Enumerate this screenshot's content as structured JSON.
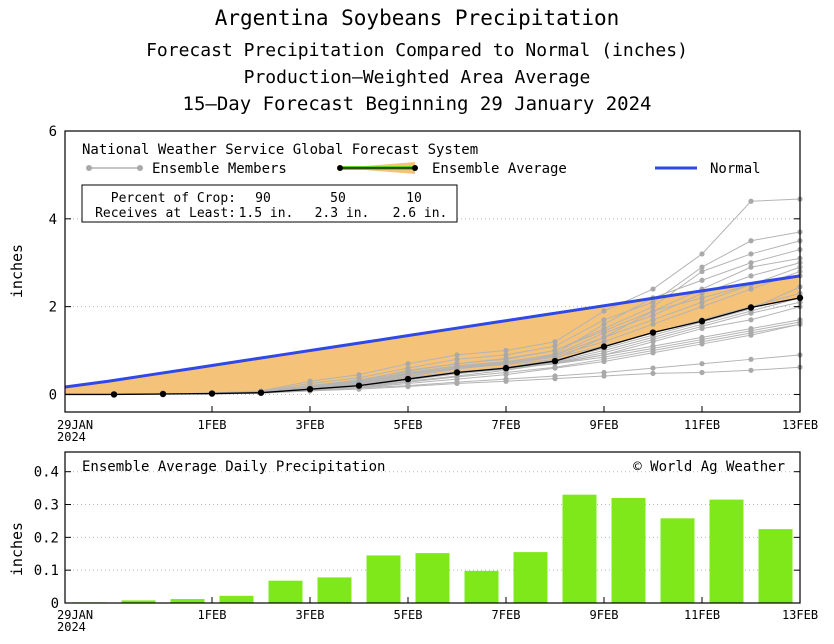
{
  "titles": {
    "line1": "Argentina Soybeans Precipitation",
    "line2": "Forecast Precipitation Compared to Normal (inches)",
    "line3": "Production—Weighted Area Average",
    "line4": "15—Day Forecast Beginning 29 January 2024"
  },
  "top_panel": {
    "model_label": "National Weather Service Global Forecast System",
    "legend": {
      "members": "Ensemble Members",
      "average": "Ensemble Average",
      "normal": "Normal"
    },
    "crop_table": {
      "row1_label": "Percent of Crop:",
      "row2_label": "Receives at Least:",
      "percents": [
        "90",
        "50",
        "10"
      ],
      "amounts": [
        "1.5 in.",
        "2.3 in.",
        "2.6 in."
      ]
    }
  },
  "bottom_panel": {
    "label": "Ensemble Average Daily Precipitation",
    "copyright": "© World Ag Weather"
  },
  "colors": {
    "normal_line": "#2f49e6",
    "fill": "#f5c27a",
    "average_line": "#000000",
    "members": "#b4b4b4",
    "bars": "#7ee81a",
    "legend_avg_green": "#6bd41a"
  },
  "chart_data": [
    {
      "type": "line",
      "title": "Forecast Precipitation Compared to Normal (inches)",
      "ylabel": "inches",
      "ylim": [
        -0.4,
        6
      ],
      "yticks": [
        0,
        2,
        4,
        6
      ],
      "x": [
        0,
        1,
        2,
        3,
        4,
        5,
        6,
        7,
        8,
        9,
        10,
        11,
        12,
        13,
        14,
        15
      ],
      "xtick_positions": [
        0,
        3,
        5,
        7,
        9,
        11,
        13,
        15
      ],
      "xtick_labels": [
        "29JAN",
        "1FEB",
        "3FEB",
        "5FEB",
        "7FEB",
        "9FEB",
        "11FEB",
        "13FEB"
      ],
      "xtick_year": "2024",
      "normal": [
        0.17,
        0.3,
        0.45,
        0.6,
        0.75,
        0.9,
        1.05,
        1.2,
        1.35,
        1.5,
        1.65,
        1.8,
        1.95,
        2.1,
        2.25,
        2.4,
        2.55,
        2.7
      ],
      "normal_x": [
        0,
        0.88,
        1.76,
        2.65,
        3.53,
        4.41,
        5.29,
        6.18,
        7.06,
        7.94,
        8.82,
        9.71,
        10.59,
        11.47,
        12.35,
        13.24,
        14.12,
        15
      ],
      "series": [
        {
          "name": "Ensemble Average",
          "values": [
            0,
            0,
            0.01,
            0.02,
            0.04,
            0.12,
            0.2,
            0.35,
            0.5,
            0.6,
            0.76,
            1.09,
            1.41,
            1.67,
            1.98,
            2.2
          ]
        }
      ],
      "members": [
        [
          0,
          0,
          0.01,
          0.02,
          0.05,
          0.15,
          0.22,
          0.4,
          0.6,
          0.68,
          0.8,
          1.3,
          1.7,
          2.1,
          2.5,
          2.9
        ],
        [
          0,
          0,
          0.01,
          0.02,
          0.03,
          0.1,
          0.18,
          0.3,
          0.42,
          0.55,
          0.72,
          0.9,
          1.2,
          1.5,
          1.7,
          2.0
        ],
        [
          0,
          0,
          0.01,
          0.03,
          0.06,
          0.2,
          0.3,
          0.55,
          0.7,
          0.8,
          1.0,
          1.5,
          2.0,
          2.8,
          3.2,
          3.5
        ],
        [
          0,
          0,
          0.01,
          0.02,
          0.04,
          0.12,
          0.2,
          0.35,
          0.5,
          0.6,
          0.7,
          0.9,
          1.1,
          1.3,
          1.5,
          1.7
        ],
        [
          0,
          0,
          0.01,
          0.02,
          0.05,
          0.15,
          0.25,
          0.45,
          0.6,
          0.7,
          0.85,
          1.1,
          1.4,
          1.7,
          2.0,
          2.3
        ],
        [
          0,
          0,
          0.01,
          0.01,
          0.03,
          0.08,
          0.15,
          0.25,
          0.35,
          0.45,
          0.6,
          0.75,
          0.95,
          1.15,
          1.35,
          1.6
        ],
        [
          0,
          0,
          0.01,
          0.03,
          0.08,
          0.3,
          0.45,
          0.7,
          0.9,
          1.0,
          1.2,
          1.9,
          2.4,
          3.2,
          4.4,
          4.45
        ],
        [
          0,
          0,
          0.01,
          0.02,
          0.04,
          0.1,
          0.15,
          0.2,
          0.28,
          0.35,
          0.42,
          0.5,
          0.6,
          0.7,
          0.8,
          0.9
        ],
        [
          0,
          0,
          0.01,
          0.02,
          0.06,
          0.18,
          0.3,
          0.5,
          0.65,
          0.75,
          0.9,
          1.4,
          1.8,
          2.3,
          2.7,
          3.0
        ],
        [
          0,
          0,
          0.01,
          0.02,
          0.04,
          0.13,
          0.22,
          0.38,
          0.52,
          0.6,
          0.75,
          1.0,
          1.3,
          1.6,
          1.9,
          2.2
        ],
        [
          0,
          0,
          0.01,
          0.02,
          0.05,
          0.16,
          0.28,
          0.48,
          0.62,
          0.72,
          0.92,
          1.6,
          2.2,
          2.6,
          3.0,
          3.3
        ],
        [
          0,
          0,
          0.01,
          0.02,
          0.03,
          0.09,
          0.16,
          0.28,
          0.4,
          0.5,
          0.62,
          0.8,
          1.0,
          1.2,
          1.4,
          1.6
        ],
        [
          0,
          0,
          0.01,
          0.02,
          0.05,
          0.14,
          0.24,
          0.42,
          0.58,
          0.7,
          0.88,
          1.2,
          1.6,
          2.0,
          2.4,
          2.8
        ],
        [
          0,
          0,
          0.01,
          0.02,
          0.04,
          0.11,
          0.19,
          0.33,
          0.47,
          0.58,
          0.73,
          0.95,
          1.25,
          1.55,
          1.85,
          2.1
        ],
        [
          0,
          0,
          0.01,
          0.03,
          0.07,
          0.25,
          0.38,
          0.6,
          0.8,
          0.9,
          1.1,
          1.7,
          2.1,
          2.9,
          3.5,
          3.7
        ],
        [
          0,
          0,
          0.01,
          0.02,
          0.04,
          0.12,
          0.2,
          0.34,
          0.48,
          0.58,
          0.7,
          0.85,
          1.05,
          1.25,
          1.45,
          1.65
        ],
        [
          0,
          0,
          0.01,
          0.02,
          0.05,
          0.17,
          0.27,
          0.46,
          0.63,
          0.73,
          0.9,
          1.3,
          1.9,
          2.4,
          2.9,
          3.1
        ],
        [
          0,
          0,
          0.01,
          0.02,
          0.03,
          0.08,
          0.12,
          0.18,
          0.25,
          0.3,
          0.36,
          0.42,
          0.48,
          0.5,
          0.55,
          0.62
        ],
        [
          0,
          0,
          0.01,
          0.02,
          0.06,
          0.2,
          0.33,
          0.53,
          0.7,
          0.82,
          1.0,
          1.45,
          1.9,
          2.2,
          2.5,
          2.7
        ],
        [
          0,
          0,
          0.01,
          0.02,
          0.04,
          0.13,
          0.21,
          0.37,
          0.5,
          0.62,
          0.78,
          1.05,
          1.35,
          1.65,
          1.95,
          2.45
        ]
      ]
    },
    {
      "type": "bar",
      "title": "Ensemble Average Daily Precipitation",
      "ylabel": "inches",
      "ylim": [
        0,
        0.46
      ],
      "yticks": [
        0,
        0.1,
        0.2,
        0.3,
        0.4
      ],
      "ytick_labels": [
        "0",
        "0.1",
        "0.2",
        "0.3",
        "0.4"
      ],
      "x": [
        1,
        2,
        3,
        4,
        5,
        6,
        7,
        8,
        9,
        10,
        11,
        12,
        13,
        14,
        15
      ],
      "values": [
        0.002,
        0.008,
        0.012,
        0.022,
        0.068,
        0.078,
        0.145,
        0.152,
        0.098,
        0.155,
        0.33,
        0.32,
        0.258,
        0.315,
        0.225
      ],
      "xtick_positions": [
        0,
        3,
        5,
        7,
        9,
        11,
        13,
        15
      ],
      "xtick_labels": [
        "29JAN",
        "1FEB",
        "3FEB",
        "5FEB",
        "7FEB",
        "9FEB",
        "11FEB",
        "13FEB"
      ],
      "xtick_year": "2024"
    }
  ]
}
